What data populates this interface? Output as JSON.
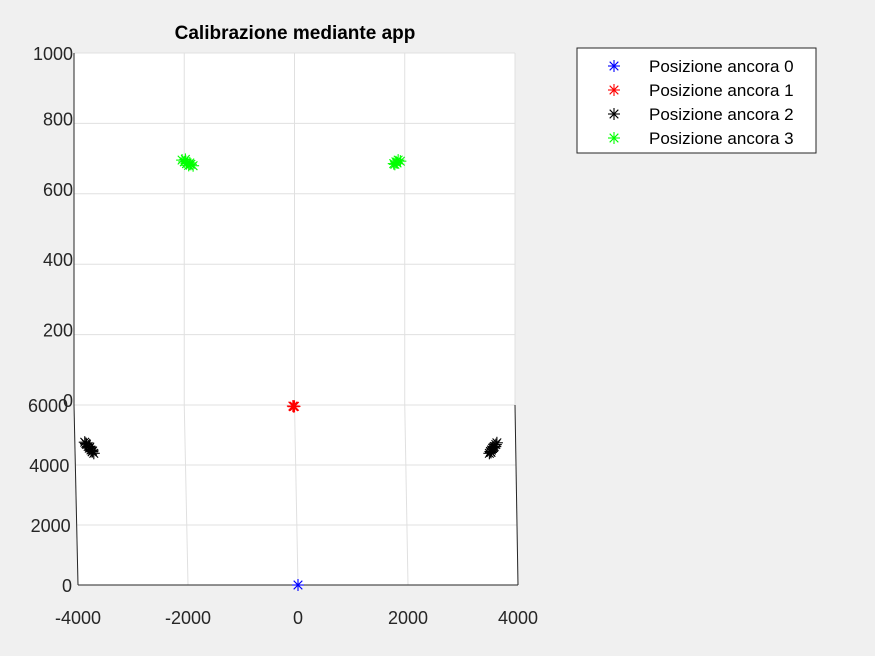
{
  "colors": {
    "background": "#f0f0f0",
    "axes_face": "#ffffff",
    "grid": "#e0e0e0",
    "axis_line": "#262626",
    "text": "#262626",
    "anchor0": "#0000ff",
    "anchor1": "#ff0000",
    "anchor2": "#000000",
    "anchor3": "#00ff00"
  },
  "chart_data": {
    "type": "scatter",
    "view": "3d",
    "title": "Calibrazione mediante app",
    "marker": "asterisk",
    "grid": true,
    "legend_position": "top-right",
    "x_axis": {
      "range": [
        -4000,
        4000
      ],
      "ticks": [
        -4000,
        -2000,
        0,
        2000,
        4000
      ],
      "tick_labels": [
        "-4000",
        "-2000",
        "0",
        "2000",
        "4000"
      ]
    },
    "y_axis": {
      "range": [
        0,
        6000
      ],
      "ticks": [
        0,
        2000,
        4000,
        6000
      ],
      "tick_labels": [
        "0",
        "2000",
        "4000",
        "6000"
      ]
    },
    "z_axis": {
      "range": [
        0,
        1000
      ],
      "ticks": [
        0,
        200,
        400,
        600,
        800,
        1000
      ],
      "tick_labels": [
        "0",
        "200",
        "400",
        "600",
        "800",
        "1000"
      ]
    },
    "series": [
      {
        "name": "Posizione ancora 0",
        "color": "#0000ff",
        "points": [
          [
            0,
            0,
            0
          ]
        ]
      },
      {
        "name": "Posizione ancora 1",
        "color": "#ff0000",
        "points": [
          [
            -20,
            5950,
            0
          ],
          [
            -10,
            5960,
            0
          ],
          [
            0,
            5955,
            0
          ],
          [
            -30,
            5965,
            0
          ],
          [
            -15,
            5945,
            0
          ]
        ]
      },
      {
        "name": "Posizione ancora 2",
        "color": "#000000",
        "points": [
          [
            -3820,
            4760,
            0
          ],
          [
            -3790,
            4690,
            0
          ],
          [
            -3760,
            4620,
            0
          ],
          [
            -3740,
            4560,
            0
          ],
          [
            -3710,
            4500,
            0
          ],
          [
            -3690,
            4440,
            0
          ],
          [
            -3660,
            4390,
            0
          ],
          [
            -3800,
            4720,
            0
          ],
          [
            -3730,
            4600,
            0
          ],
          [
            -3680,
            4470,
            0
          ],
          [
            3520,
            4390,
            0
          ],
          [
            3540,
            4450,
            0
          ],
          [
            3560,
            4500,
            0
          ],
          [
            3580,
            4560,
            0
          ],
          [
            3610,
            4620,
            0
          ],
          [
            3640,
            4680,
            0
          ],
          [
            3660,
            4740,
            0
          ],
          [
            3550,
            4420,
            0
          ],
          [
            3600,
            4580,
            0
          ]
        ]
      },
      {
        "name": "Posizione ancora 3",
        "color": "#00ff00",
        "points": [
          [
            -2040,
            5950,
            700
          ],
          [
            -2000,
            5950,
            695
          ],
          [
            -1960,
            5950,
            690
          ],
          [
            -1920,
            5950,
            685
          ],
          [
            -1880,
            5950,
            688
          ],
          [
            -1840,
            5950,
            684
          ],
          [
            -1980,
            5950,
            702
          ],
          [
            -1900,
            5950,
            692
          ],
          [
            1800,
            5950,
            690
          ],
          [
            1840,
            5950,
            695
          ],
          [
            1880,
            5950,
            700
          ],
          [
            1920,
            5950,
            697
          ],
          [
            1860,
            5950,
            692
          ],
          [
            1820,
            5950,
            688
          ]
        ]
      }
    ]
  }
}
